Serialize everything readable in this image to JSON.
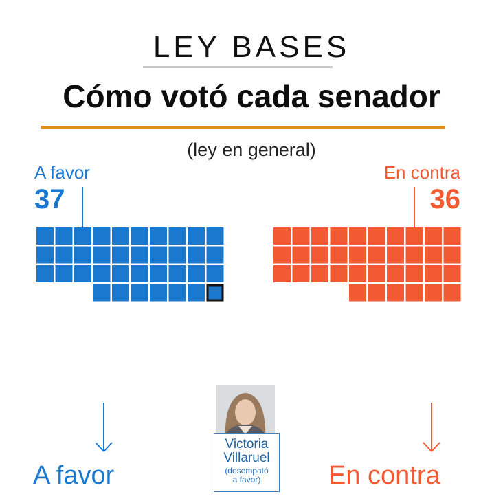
{
  "kicker": "LEY BASES",
  "title": "Cómo votó cada senador",
  "subtitle": "(ley en general)",
  "colors": {
    "favor": "#1a78cf",
    "contra": "#f25a33",
    "title_rule": "#e08b17",
    "tiebreak_border": "#111111"
  },
  "favor": {
    "label": "A favor",
    "count": "37",
    "bottom_label": "A favor"
  },
  "contra": {
    "label": "En contra",
    "count": "36",
    "bottom_label": "En contra"
  },
  "tiebreaker": {
    "name": "Victoria Villaruel",
    "name_line1": "Victoria",
    "name_line2": "Villaruel",
    "note_line1": "(desempató",
    "note_line2": "a favor)"
  },
  "chart_data": {
    "type": "waffle",
    "categories": [
      "A favor",
      "En contra"
    ],
    "values": [
      37,
      36
    ],
    "tiebreak_vote": {
      "name": "Victoria Villaruel",
      "vote": "A favor",
      "counts_in": "A favor"
    },
    "title": "Cómo votó cada senador",
    "subtitle": "(ley en general)"
  }
}
